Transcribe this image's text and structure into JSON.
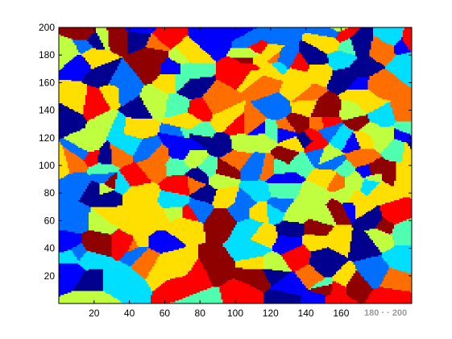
{
  "chart_data": {
    "type": "heatmap",
    "description_free": true,
    "title": "",
    "xlabel": "",
    "ylabel": "",
    "xlim": [
      0,
      200
    ],
    "ylim": [
      0,
      200
    ],
    "x_ticks": [
      20,
      40,
      60,
      80,
      100,
      120,
      140,
      160
    ],
    "y_ticks": [
      20,
      40,
      60,
      80,
      100,
      120,
      140,
      160,
      180,
      200
    ],
    "colormap": [
      "#00008f",
      "#0000ff",
      "#006fff",
      "#00dfff",
      "#4fffaf",
      "#bfff3f",
      "#ffdf00",
      "#ff6f00",
      "#ff0000",
      "#8f0000"
    ],
    "grid": false,
    "legend": "none",
    "seed_count": 260,
    "watermark_text": "180 · · 200"
  }
}
